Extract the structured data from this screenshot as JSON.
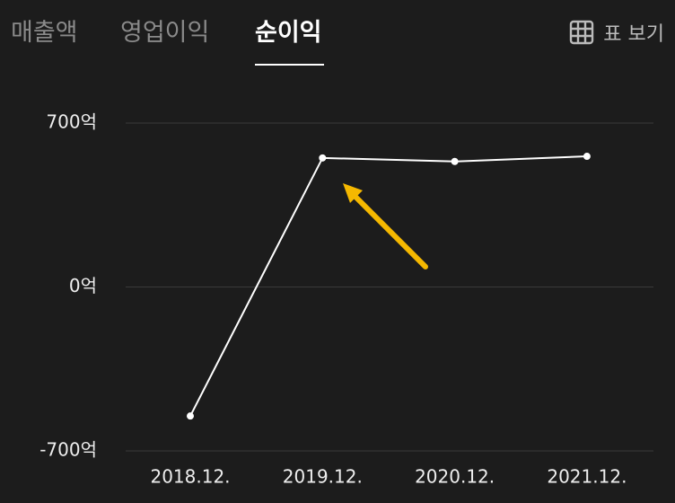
{
  "tabs": [
    "매출액",
    "영업이익",
    "순이익"
  ],
  "active_tab": 2,
  "table_button": "표 보기",
  "chart_data": {
    "type": "line",
    "categories": [
      "2018.12.",
      "2019.12.",
      "2020.12.",
      "2021.12."
    ],
    "series": [
      {
        "name": "순이익",
        "color": "#ffffff",
        "values": [
          -551,
          551,
          536,
          558
        ]
      }
    ],
    "ylim": [
      -700,
      700
    ],
    "yticks": [
      {
        "value": -700,
        "label": "-700억"
      },
      {
        "value": 0,
        "label": "0억"
      },
      {
        "value": 700,
        "label": "700억"
      }
    ],
    "grid": true
  }
}
